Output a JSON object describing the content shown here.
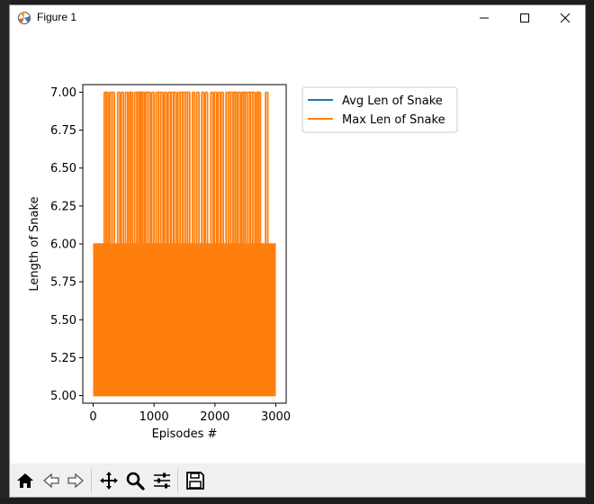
{
  "window": {
    "title": "Figure 1"
  },
  "toolbar": {
    "buttons": [
      {
        "name": "home-icon"
      },
      {
        "name": "back-arrow-icon"
      },
      {
        "name": "forward-arrow-icon"
      },
      {
        "name": "pan-move-icon"
      },
      {
        "name": "zoom-magnifier-icon"
      },
      {
        "name": "configure-subplots-icon"
      },
      {
        "name": "save-figure-icon"
      }
    ]
  },
  "chart_data": {
    "type": "line",
    "title": "",
    "xlabel": "Episodes #",
    "ylabel": "Length of Snake",
    "xlim": [
      -170,
      3170
    ],
    "ylim": [
      4.95,
      7.05
    ],
    "xticks": [
      0,
      1000,
      2000,
      3000
    ],
    "xtick_labels": [
      "0",
      "1000",
      "2000",
      "3000"
    ],
    "yticks": [
      5.0,
      5.25,
      5.5,
      5.75,
      6.0,
      6.25,
      6.5,
      6.75,
      7.0
    ],
    "ytick_labels": [
      "5.00",
      "5.25",
      "5.50",
      "5.75",
      "6.00",
      "6.25",
      "6.50",
      "6.75",
      "7.00"
    ],
    "grid": false,
    "legend_position": "upper-left-outside",
    "series": [
      {
        "name": "Avg Len of Snake",
        "color": "#1f77b4",
        "x_range": [
          0,
          3000
        ],
        "values_range": [
          5,
          7
        ]
      },
      {
        "name": "Max Len of Snake",
        "color": "#ff7f0e",
        "x_range": [
          0,
          3000
        ],
        "values_range": [
          5,
          7
        ],
        "spikes_to_7_at": [
          200,
          230,
          290,
          330,
          420,
          480,
          550,
          600,
          630,
          700,
          740,
          770,
          800,
          830,
          880,
          920,
          980,
          1050,
          1090,
          1130,
          1190,
          1250,
          1300,
          1350,
          1410,
          1450,
          1490,
          1530,
          1570,
          1650,
          1720,
          1800,
          1860,
          1950,
          2010,
          2070,
          2120,
          2200,
          2240,
          2280,
          2320,
          2350,
          2400,
          2450,
          2480,
          2520,
          2560,
          2600,
          2640,
          2700,
          2730,
          2850
        ]
      }
    ]
  }
}
